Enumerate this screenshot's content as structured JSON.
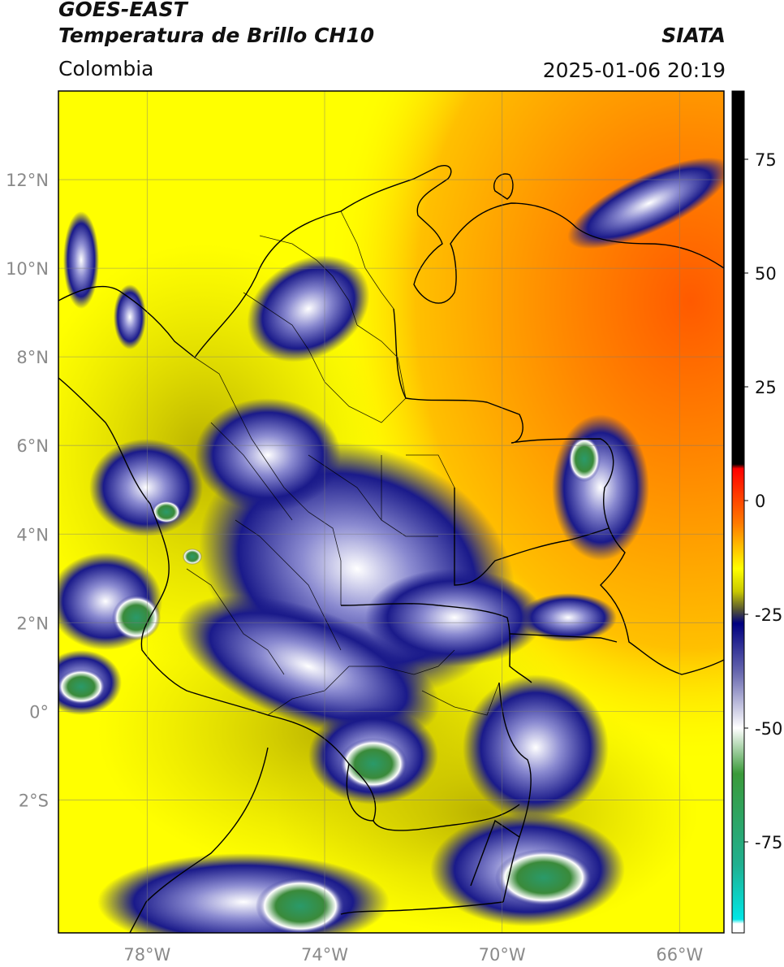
{
  "header": {
    "satellite": "GOES-EAST",
    "product": "Temperatura de Brillo CH10",
    "region": "Colombia",
    "agency": "SIATA",
    "datetime": "2025-01-06 20:19"
  },
  "map": {
    "lat_labels": [
      "12°N",
      "10°N",
      "8°N",
      "6°N",
      "4°N",
      "2°N",
      "0°",
      "2°S"
    ],
    "lon_labels": [
      "78°W",
      "74°W",
      "70°W",
      "66°W"
    ],
    "lat_range": [
      -5.0,
      14.0
    ],
    "lon_range": [
      -80.0,
      -65.0
    ],
    "gridlines": true
  },
  "colorbar": {
    "ticks": [
      "75",
      "50",
      "25",
      "0",
      "-25",
      "-50",
      "-75"
    ],
    "range": [
      -95,
      90
    ],
    "stops": [
      {
        "v": 90,
        "c": "#000000"
      },
      {
        "v": 8,
        "c": "#000000"
      },
      {
        "v": 7,
        "c": "#ff0000"
      },
      {
        "v": -5,
        "c": "#ff7a00"
      },
      {
        "v": -15,
        "c": "#ffff00"
      },
      {
        "v": -20,
        "c": "#c8c800"
      },
      {
        "v": -24,
        "c": "#555533"
      },
      {
        "v": -27,
        "c": "#000080"
      },
      {
        "v": -38,
        "c": "#6a6ab0"
      },
      {
        "v": -50,
        "c": "#ffffff"
      },
      {
        "v": -60,
        "c": "#3a9a3a"
      },
      {
        "v": -80,
        "c": "#20b090"
      },
      {
        "v": -92,
        "c": "#00e6e6"
      },
      {
        "v": -93,
        "c": "#ffffff"
      },
      {
        "v": -95,
        "c": "#ffffff"
      }
    ]
  }
}
